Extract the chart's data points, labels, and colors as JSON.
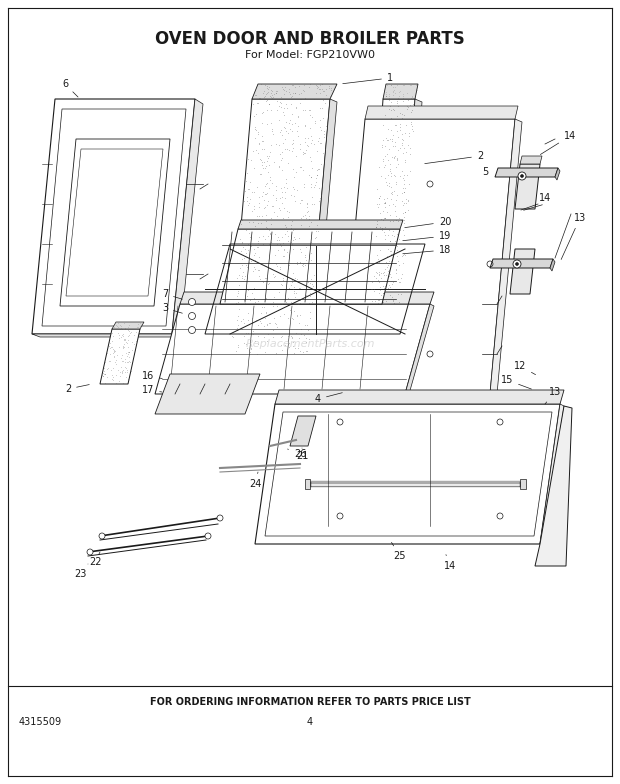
{
  "title": "OVEN DOOR AND BROILER PARTS",
  "subtitle": "For Model: FGP210VW0",
  "footer_text": "FOR ORDERING INFORMATION REFER TO PARTS PRICE LIST",
  "part_number": "4315509",
  "page_number": "4",
  "bg_color": "#ffffff",
  "lc": "#1a1a1a",
  "watermark": "ReplacementParts.com",
  "stipple_color": "#aaaaaa"
}
